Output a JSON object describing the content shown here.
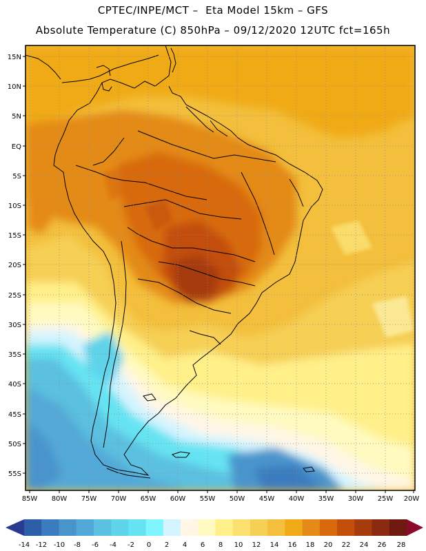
{
  "header": {
    "line1": "CPTEC/INPE/MCT –  Eta Model 15km – GFS",
    "line2": "Absolute Temperature (C) 850hPa – 09/12/2020 12UTC fct=165h"
  },
  "map": {
    "lat_labels": [
      "15N",
      "10N",
      "5N",
      "EQ",
      "5S",
      "10S",
      "15S",
      "20S",
      "25S",
      "30S",
      "35S",
      "40S",
      "45S",
      "50S",
      "55S"
    ],
    "lon_labels": [
      "85W",
      "80W",
      "75W",
      "70W",
      "65W",
      "60W",
      "55W",
      "50W",
      "45W",
      "40W",
      "35W",
      "30W",
      "25W",
      "20W"
    ]
  },
  "colorbar": {
    "labels": [
      "-14",
      "-12",
      "-10",
      "-8",
      "-6",
      "-4",
      "-2",
      "0",
      "2",
      "4",
      "6",
      "8",
      "10",
      "12",
      "14",
      "16",
      "18",
      "20",
      "22",
      "24",
      "26",
      "28"
    ],
    "colors": [
      "#2a3b8f",
      "#2d5fa8",
      "#3b7bbf",
      "#4a94cc",
      "#52a9d7",
      "#5cc0e0",
      "#5fd3ea",
      "#66e3f2",
      "#7ef5ff",
      "#d4f4ff",
      "#fff6e6",
      "#fffac0",
      "#fff08a",
      "#fbe070",
      "#f6cf55",
      "#f3bf3c",
      "#f0aa18",
      "#e48a18",
      "#d86a0c",
      "#c24e0a",
      "#a63b0c",
      "#8a2a10",
      "#6e1a10",
      "#8a0a2a"
    ]
  }
}
